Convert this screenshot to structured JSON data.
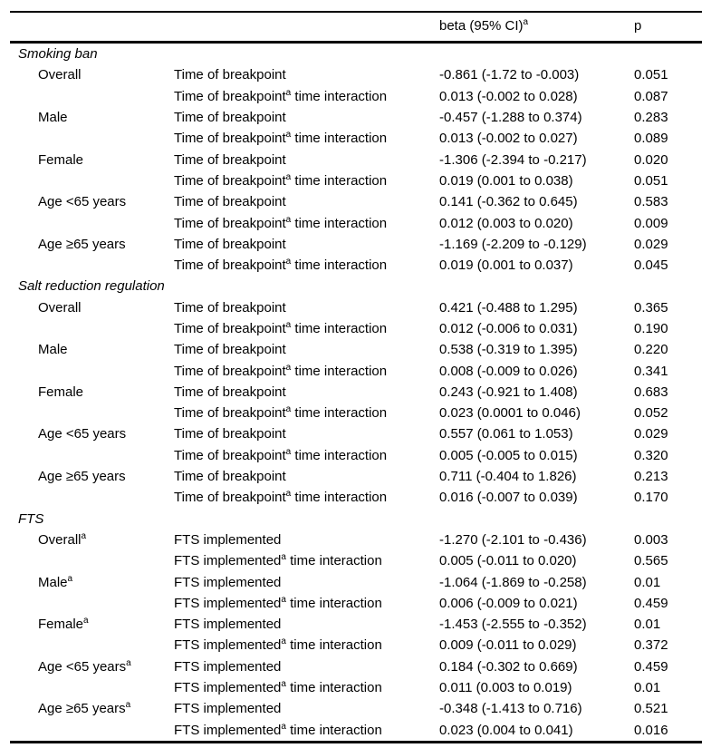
{
  "table": {
    "header": {
      "beta": "beta (95% CI)",
      "beta_sup": "a",
      "p": "p"
    },
    "sections": [
      {
        "title": "Smoking ban",
        "rows": [
          {
            "group": "Overall",
            "group_sup": "",
            "var": "Time of breakpoint",
            "var_sup": "",
            "var_suffix": "",
            "beta": "-0.861 (-1.72 to -0.003)",
            "p": "0.051"
          },
          {
            "group": "",
            "group_sup": "",
            "var": "Time of breakpoint",
            "var_sup": "a",
            "var_suffix": " time interaction",
            "beta": "0.013 (-0.002 to 0.028)",
            "p": "0.087"
          },
          {
            "group": "Male",
            "group_sup": "",
            "var": "Time of breakpoint",
            "var_sup": "",
            "var_suffix": "",
            "beta": "-0.457 (-1.288 to 0.374)",
            "p": "0.283"
          },
          {
            "group": "",
            "group_sup": "",
            "var": "Time of breakpoint",
            "var_sup": "a",
            "var_suffix": " time interaction",
            "beta": "0.013 (-0.002 to 0.027)",
            "p": "0.089"
          },
          {
            "group": "Female",
            "group_sup": "",
            "var": "Time of breakpoint",
            "var_sup": "",
            "var_suffix": "",
            "beta": "-1.306 (-2.394 to -0.217)",
            "p": "0.020"
          },
          {
            "group": "",
            "group_sup": "",
            "var": "Time of breakpoint",
            "var_sup": "a",
            "var_suffix": " time interaction",
            "beta": "0.019 (0.001 to 0.038)",
            "p": "0.051"
          },
          {
            "group": "Age <65 years",
            "group_sup": "",
            "var": "Time of breakpoint",
            "var_sup": "",
            "var_suffix": "",
            "beta": "0.141 (-0.362 to 0.645)",
            "p": "0.583"
          },
          {
            "group": "",
            "group_sup": "",
            "var": "Time of breakpoint",
            "var_sup": "a",
            "var_suffix": " time interaction",
            "beta": "0.012 (0.003 to 0.020)",
            "p": "0.009"
          },
          {
            "group": "Age ≥65 years",
            "group_sup": "",
            "var": "Time of breakpoint",
            "var_sup": "",
            "var_suffix": "",
            "beta": "-1.169 (-2.209 to -0.129)",
            "p": "0.029"
          },
          {
            "group": "",
            "group_sup": "",
            "var": "Time of breakpoint",
            "var_sup": "a",
            "var_suffix": " time interaction",
            "beta": "0.019 (0.001 to 0.037)",
            "p": "0.045"
          }
        ]
      },
      {
        "title": "Salt reduction regulation",
        "rows": [
          {
            "group": "Overall",
            "group_sup": "",
            "var": "Time of breakpoint",
            "var_sup": "",
            "var_suffix": "",
            "beta": "0.421 (-0.488 to 1.295)",
            "p": "0.365"
          },
          {
            "group": "",
            "group_sup": "",
            "var": "Time of breakpoint",
            "var_sup": "a",
            "var_suffix": " time interaction",
            "beta": "0.012 (-0.006 to 0.031)",
            "p": "0.190"
          },
          {
            "group": "Male",
            "group_sup": "",
            "var": "Time of breakpoint",
            "var_sup": "",
            "var_suffix": "",
            "beta": "0.538 (-0.319 to 1.395)",
            "p": "0.220"
          },
          {
            "group": "",
            "group_sup": "",
            "var": "Time of breakpoint",
            "var_sup": "a",
            "var_suffix": " time interaction",
            "beta": "0.008 (-0.009 to 0.026)",
            "p": "0.341"
          },
          {
            "group": "Female",
            "group_sup": "",
            "var": "Time of breakpoint",
            "var_sup": "",
            "var_suffix": "",
            "beta": "0.243 (-0.921 to 1.408)",
            "p": "0.683"
          },
          {
            "group": "",
            "group_sup": "",
            "var": "Time of breakpoint",
            "var_sup": "a",
            "var_suffix": " time interaction",
            "beta": "0.023 (0.0001 to 0.046)",
            "p": "0.052"
          },
          {
            "group": "Age <65 years",
            "group_sup": "",
            "var": "Time of breakpoint",
            "var_sup": "",
            "var_suffix": "",
            "beta": "0.557 (0.061 to 1.053)",
            "p": "0.029"
          },
          {
            "group": "",
            "group_sup": "",
            "var": "Time of breakpoint",
            "var_sup": "a",
            "var_suffix": " time interaction",
            "beta": "0.005 (-0.005 to 0.015)",
            "p": "0.320"
          },
          {
            "group": "Age ≥65 years",
            "group_sup": "",
            "var": "Time of breakpoint",
            "var_sup": "",
            "var_suffix": "",
            "beta": "0.711 (-0.404 to 1.826)",
            "p": "0.213"
          },
          {
            "group": "",
            "group_sup": "",
            "var": "Time of breakpoint",
            "var_sup": "a",
            "var_suffix": " time interaction",
            "beta": "0.016 (-0.007 to 0.039)",
            "p": "0.170"
          }
        ]
      },
      {
        "title": "FTS",
        "rows": [
          {
            "group": "Overall",
            "group_sup": "a",
            "var": "FTS implemented",
            "var_sup": "",
            "var_suffix": "",
            "beta": "-1.270 (-2.101 to -0.436)",
            "p": "0.003"
          },
          {
            "group": "",
            "group_sup": "",
            "var": "FTS implemented",
            "var_sup": "a",
            "var_suffix": " time interaction",
            "beta": "0.005 (-0.011 to 0.020)",
            "p": "0.565"
          },
          {
            "group": "Male",
            "group_sup": "a",
            "var": "FTS implemented",
            "var_sup": "",
            "var_suffix": "",
            "beta": "-1.064 (-1.869 to -0.258)",
            "p": "0.01"
          },
          {
            "group": "",
            "group_sup": "",
            "var": "FTS implemented",
            "var_sup": "a",
            "var_suffix": " time interaction",
            "beta": "0.006 (-0.009 to 0.021)",
            "p": "0.459"
          },
          {
            "group": "Female",
            "group_sup": "a",
            "var": "FTS implemented",
            "var_sup": "",
            "var_suffix": "",
            "beta": "-1.453 (-2.555 to -0.352)",
            "p": "0.01"
          },
          {
            "group": "",
            "group_sup": "",
            "var": "FTS implemented",
            "var_sup": "a",
            "var_suffix": " time interaction",
            "beta": "0.009 (-0.011 to 0.029)",
            "p": "0.372"
          },
          {
            "group": "Age <65 years",
            "group_sup": "a",
            "var": "FTS implemented",
            "var_sup": "",
            "var_suffix": "",
            "beta": "0.184 (-0.302 to 0.669)",
            "p": "0.459"
          },
          {
            "group": "",
            "group_sup": "",
            "var": "FTS implemented",
            "var_sup": "a",
            "var_suffix": " time interaction",
            "beta": "0.011 (0.003 to 0.019)",
            "p": "0.01"
          },
          {
            "group": "Age ≥65 years",
            "group_sup": "a",
            "var": "FTS implemented",
            "var_sup": "",
            "var_suffix": "",
            "beta": "-0.348 (-1.413 to 0.716)",
            "p": "0.521"
          },
          {
            "group": "",
            "group_sup": "",
            "var": "FTS implemented",
            "var_sup": "a",
            "var_suffix": " time interaction",
            "beta": "0.023 (0.004 to 0.041)",
            "p": "0.016"
          }
        ]
      }
    ]
  }
}
